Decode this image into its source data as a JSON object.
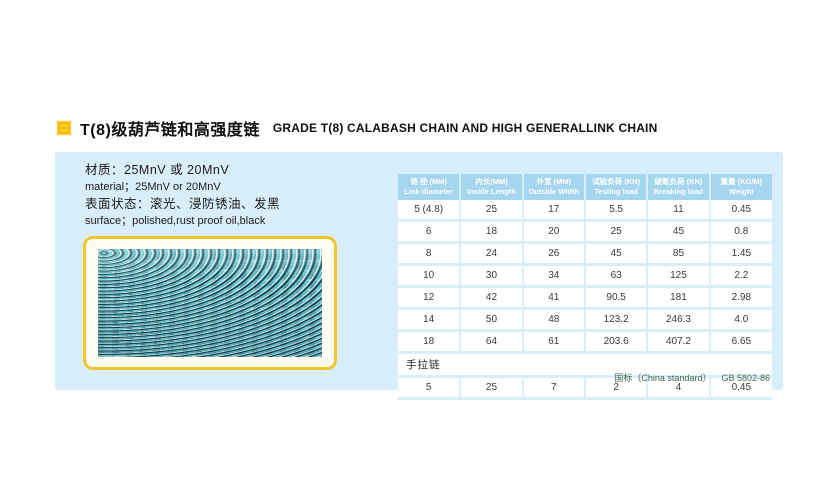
{
  "page": {
    "title_zh": "T(8)级葫芦链和高强度链",
    "title_en": "GRADE T(8) CALABASH CHAIN AND HIGH GENERALLINK CHAIN"
  },
  "colors": {
    "accent_yellow": "#ffc20e",
    "panel_blue": "#d8eefa",
    "table_header_blue": "#a6d5ef",
    "photo_frame_yellow": "#f2c52e",
    "note_green": "#3f6653",
    "chain_teal": "#3a96a0"
  },
  "specs": {
    "material_zh": "材质：25MnV 或 20MnV",
    "material_en": "material；25MnV or 20MnV",
    "surface_zh": "表面状态：滚光、浸防锈油、发黑",
    "surface_en": "surface；polished,rust proof oil,black"
  },
  "table": {
    "headers": [
      {
        "zh": "链 径 (MM)",
        "en": "Link diameter"
      },
      {
        "zh": "内长(MM)",
        "en": "Inside Length"
      },
      {
        "zh": "外宽 (MM)",
        "en": "Outside Width"
      },
      {
        "zh": "试验负荷 (KN)",
        "en": "Testing load"
      },
      {
        "zh": "破断负荷 (KN)",
        "en": "Breaking load"
      },
      {
        "zh": "重量 (KG/M)",
        "en": "Weight"
      }
    ],
    "rows": [
      [
        "5 (4.8)",
        "25",
        "17",
        "5.5",
        "11",
        "0.45"
      ],
      [
        "6",
        "18",
        "20",
        "25",
        "45",
        "0.8"
      ],
      [
        "8",
        "24",
        "26",
        "45",
        "85",
        "1.45"
      ],
      [
        "10",
        "30",
        "34",
        "63",
        "125",
        "2.2"
      ],
      [
        "12",
        "42",
        "41",
        "90.5",
        "181",
        "2.98"
      ],
      [
        "14",
        "50",
        "48",
        "123.2",
        "246.3",
        "4.0"
      ],
      [
        "18",
        "64",
        "61",
        "203.6",
        "407.2",
        "6.65"
      ]
    ],
    "section_label": "手拉链",
    "section_rows": [
      [
        "5",
        "25",
        "7",
        "2",
        "4",
        "0.45"
      ]
    ]
  },
  "note": {
    "standard": "国标（China standard）",
    "code": "GB 5802-86"
  }
}
